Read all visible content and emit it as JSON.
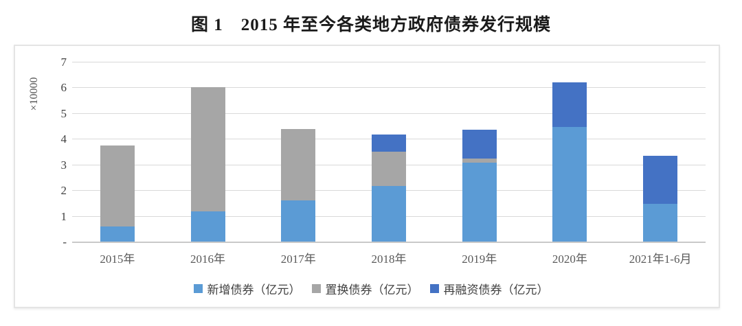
{
  "title": "图 1　2015 年至今各类地方政府债券发行规模",
  "axis": {
    "y_unit_label": "×10000",
    "zero_tick_label": "-"
  },
  "legend": {
    "items": [
      {
        "label": "新增债券（亿元）",
        "color": "#5B9BD5"
      },
      {
        "label": "置换债券（亿元）",
        "color": "#A6A6A6"
      },
      {
        "label": "再融资债券（亿元）",
        "color": "#4472C4"
      }
    ]
  },
  "chart_data": {
    "type": "bar",
    "stacked": true,
    "title": "图 1　2015 年至今各类地方政府债券发行规模",
    "xlabel": "",
    "ylabel": "×10000",
    "ylim": [
      0,
      7
    ],
    "y_tick_step": 1,
    "zero_tick_label": "-",
    "grid": true,
    "legend_position": "bottom",
    "unit_note": "values in 万亿元 (axis ×10000 亿元)",
    "categories": [
      "2015年",
      "2016年",
      "2017年",
      "2018年",
      "2019年",
      "2020年",
      "2021年1-6月"
    ],
    "series": [
      {
        "name": "新增债券（亿元）",
        "color": "#5B9BD5",
        "values": [
          0.6,
          1.17,
          1.59,
          2.17,
          3.06,
          4.45,
          1.48
        ]
      },
      {
        "name": "置换债券（亿元）",
        "color": "#A6A6A6",
        "values": [
          3.15,
          4.85,
          2.78,
          1.32,
          0.16,
          0.0,
          0.0
        ]
      },
      {
        "name": "再融资债券（亿元）",
        "color": "#4472C4",
        "values": [
          0.0,
          0.0,
          0.0,
          0.67,
          1.13,
          1.75,
          1.85
        ]
      }
    ],
    "stack_totals": [
      3.75,
      6.02,
      4.37,
      4.16,
      4.35,
      6.2,
      3.33
    ]
  }
}
